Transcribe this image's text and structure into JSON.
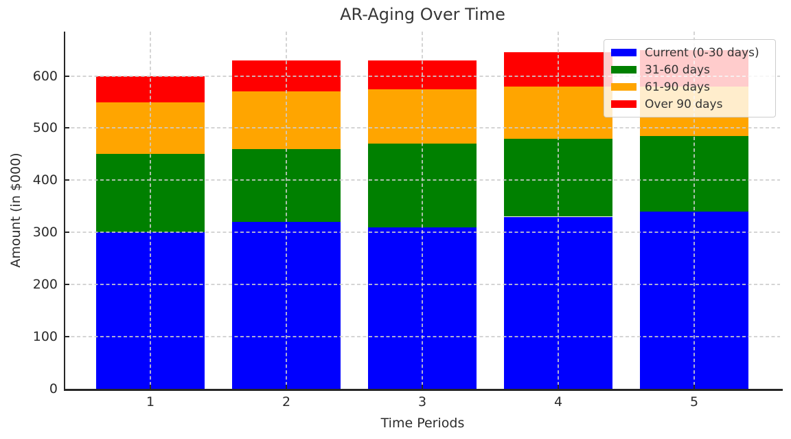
{
  "chart_data": {
    "type": "bar",
    "stacked": true,
    "title": "AR-Aging Over Time",
    "xlabel": "Time Periods",
    "ylabel": "Amount (in $000)",
    "categories": [
      "1",
      "2",
      "3",
      "4",
      "5"
    ],
    "series": [
      {
        "name": "Current (0-30 days)",
        "color": "#0000FF",
        "values": [
          300,
          320,
          310,
          330,
          340
        ]
      },
      {
        "name": "31-60 days",
        "color": "#008000",
        "values": [
          150,
          140,
          160,
          150,
          145
        ]
      },
      {
        "name": "61-90 days",
        "color": "#FFA500",
        "values": [
          100,
          110,
          105,
          100,
          95
        ]
      },
      {
        "name": "Over 90 days",
        "color": "#FF0000",
        "values": [
          50,
          60,
          55,
          65,
          70
        ]
      }
    ],
    "stack_totals": [
      600,
      630,
      630,
      645,
      650
    ],
    "ylim": [
      0,
      685
    ],
    "yticks": [
      0,
      100,
      200,
      300,
      400,
      500,
      600
    ],
    "grid": true,
    "grid_style": "dashed",
    "grid_color": "#cccccc",
    "legend_position": "upper right",
    "legend_bg_alpha": 0.8,
    "text_color": "#2b2b2b",
    "spine_color": "#262626"
  }
}
